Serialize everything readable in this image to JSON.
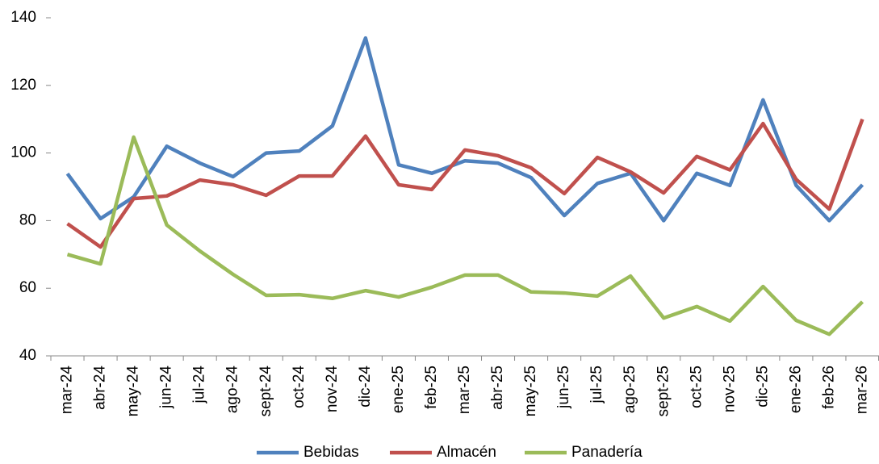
{
  "chart_data": {
    "type": "line",
    "categories": [
      "mar-24",
      "abr-24",
      "may-24",
      "jun-24",
      "jul-24",
      "ago-24",
      "sept-24",
      "oct-24",
      "nov-24",
      "dic-24",
      "ene-25",
      "feb-25",
      "mar-25",
      "abr-25",
      "may-25",
      "jun-25",
      "jul-25",
      "ago-25",
      "sept-25",
      "oct-25",
      "nov-25",
      "dic-25",
      "ene-26",
      "feb-26",
      "mar-26"
    ],
    "series": [
      {
        "name": "Bebidas",
        "color": "#4f81bd",
        "values": [
          93.9,
          80.6,
          87,
          102,
          97,
          93,
          100,
          100.6,
          108,
          134,
          96.5,
          94,
          97.7,
          97,
          92.7,
          81.5,
          91,
          94,
          80,
          94,
          90.4,
          115.7,
          90.4,
          80,
          90.6
        ]
      },
      {
        "name": "Almacén",
        "color": "#c0504d",
        "values": [
          79.1,
          72.2,
          86.5,
          87.3,
          92,
          90.6,
          87.5,
          93.2,
          93.2,
          105,
          90.6,
          89.2,
          100.9,
          99.2,
          95.6,
          88,
          98.7,
          94.4,
          88.2,
          99,
          95,
          108.7,
          92.2,
          83.4,
          110
        ]
      },
      {
        "name": "Panadería",
        "color": "#9bbb59",
        "values": [
          70,
          67.2,
          104.7,
          78.7,
          71,
          64.1,
          57.9,
          58.1,
          57,
          59.3,
          57.4,
          60.3,
          63.9,
          63.9,
          58.9,
          58.6,
          57.7,
          63.6,
          51.2,
          54.6,
          50.3,
          60.5,
          50.5,
          46.4,
          56
        ]
      }
    ],
    "ylim": [
      40,
      140
    ],
    "yticks": [
      40,
      60,
      80,
      100,
      120,
      140
    ],
    "grid": false,
    "legend": "bottom"
  }
}
